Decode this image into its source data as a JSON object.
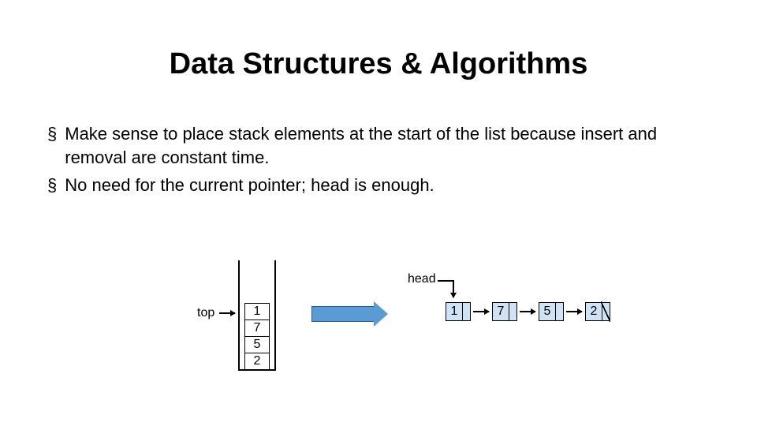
{
  "title": "Data Structures & Algorithms",
  "title_fontsize": 38,
  "bullet_marker": "§",
  "bullets": [
    "Make sense to place stack elements at the start of the list  because insert and removal are constant time.",
    "No need for the current pointer; head is enough."
  ],
  "bullet_fontsize": 22,
  "stack": {
    "top_label": "top",
    "cells": [
      "1",
      "7",
      "5",
      "2"
    ],
    "cell_fontsize": 16,
    "border_color": "#000000"
  },
  "transition_arrow": {
    "fill": "#5b9bd5",
    "border": "#2e5c8a"
  },
  "linked_list": {
    "head_label": "head",
    "nodes": [
      "1",
      "7",
      "5",
      "2"
    ],
    "node_fill": "#d0e3f5",
    "node_border": "#000000",
    "fontsize": 16
  },
  "background_color": "#ffffff",
  "text_color": "#000000"
}
